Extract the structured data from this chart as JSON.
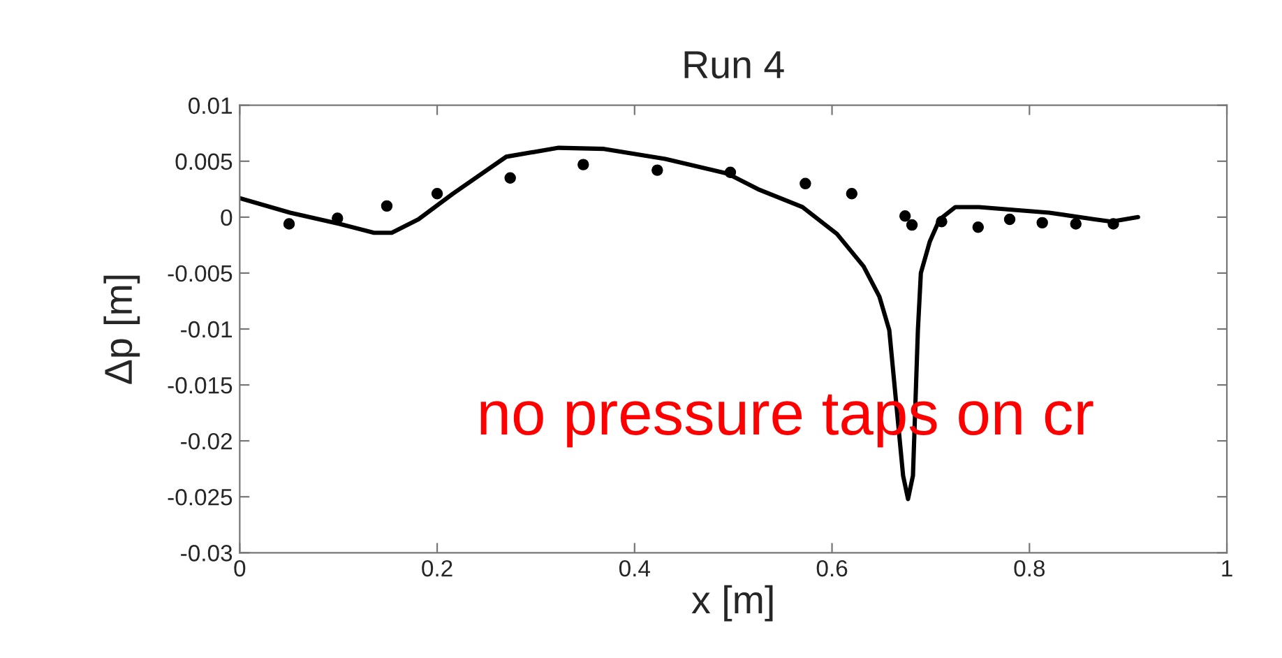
{
  "chart_data": {
    "type": "line",
    "title": "Run 4",
    "xlabel": "x [m]",
    "ylabel": "Δp [m]",
    "annotations": [
      "no pressure taps on cr"
    ],
    "xlim": [
      0,
      1
    ],
    "xticks": [
      0,
      0.2,
      0.4,
      0.6,
      0.8,
      1
    ],
    "ylim": [
      -0.03,
      0.01
    ],
    "yticks": [
      -0.03,
      -0.025,
      -0.02,
      -0.015,
      -0.01,
      -0.005,
      0,
      0.005,
      0.01
    ],
    "grid": false,
    "legend": false,
    "series": [
      {
        "color": "#000000",
        "marker": "none",
        "line_style": "solid",
        "x": [
          0,
          0.051,
          0.101,
          0.136,
          0.154,
          0.181,
          0.216,
          0.27,
          0.323,
          0.369,
          0.431,
          0.494,
          0.525,
          0.57,
          0.605,
          0.632,
          0.648,
          0.658,
          0.672,
          0.677,
          0.682,
          0.687,
          0.69,
          0.699,
          0.709,
          0.725,
          0.749,
          0.82,
          0.866,
          0.883,
          0.91
        ],
        "values": [
          0.0017,
          0.0004,
          -0.0006,
          -0.0014,
          -0.0014,
          -0.0002,
          0.0021,
          0.0054,
          0.0062,
          0.0061,
          0.0052,
          0.0039,
          0.0025,
          0.0009,
          -0.0015,
          -0.0044,
          -0.0071,
          -0.0101,
          -0.0231,
          -0.0252,
          -0.0231,
          -0.0101,
          -0.005,
          -0.0022,
          -0.0002,
          0.0009,
          0.0009,
          0.0004,
          -0.0002,
          -0.0004,
          0.0
        ]
      },
      {
        "type": "scatter",
        "color": "#000000",
        "marker": "circle",
        "x": [
          0.05,
          0.099,
          0.149,
          0.2,
          0.274,
          0.348,
          0.423,
          0.497,
          0.573,
          0.62,
          0.674,
          0.681,
          0.711,
          0.748,
          0.78,
          0.813,
          0.847,
          0.885
        ],
        "values": [
          -0.0006,
          -0.0001,
          0.001,
          0.0021,
          0.0035,
          0.0047,
          0.0042,
          0.004,
          0.003,
          0.0021,
          0.0001,
          -0.0007,
          -0.0004,
          -0.0009,
          -0.0002,
          -0.0005,
          -0.0006,
          -0.0006
        ]
      }
    ]
  }
}
